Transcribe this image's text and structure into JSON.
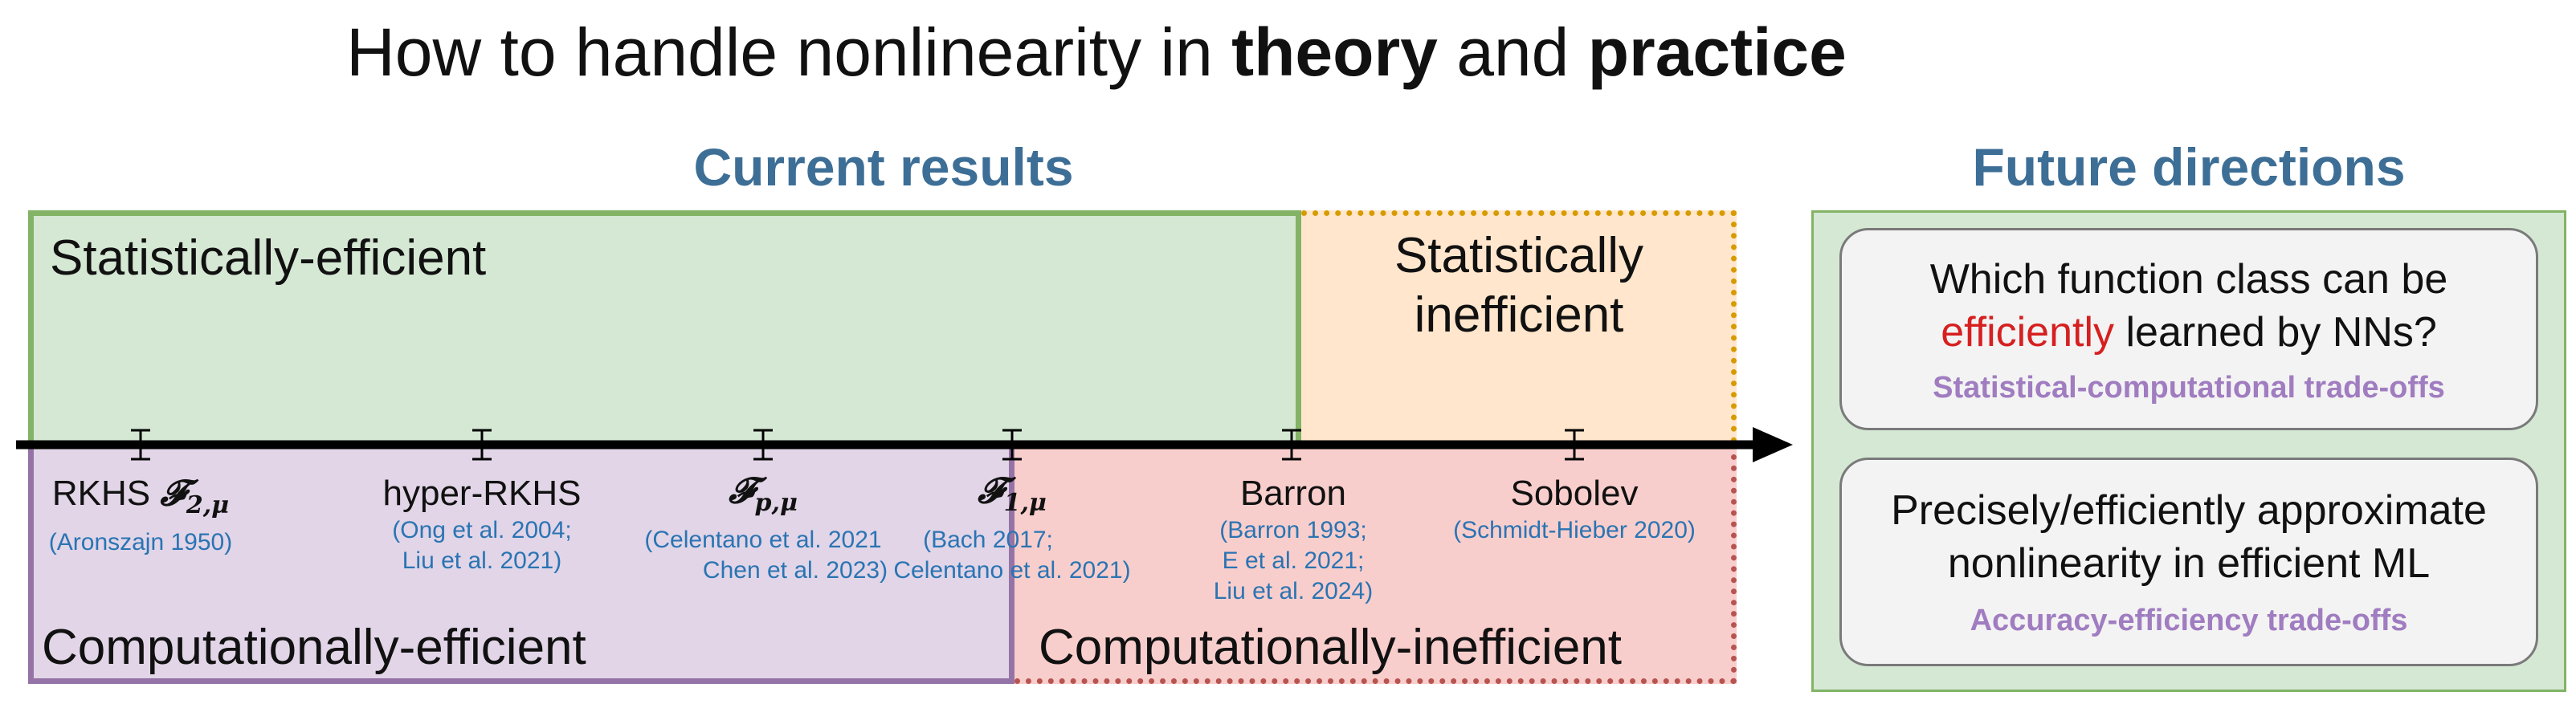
{
  "title": {
    "prefix": "How to handle nonlinearity in ",
    "b1": "theory",
    "mid": " and ",
    "b2": "practice"
  },
  "current": {
    "heading": "Current results",
    "stat_eff": "Statistically-efficient",
    "stat_ineff_1": "Statistically",
    "stat_ineff_2": "inefficient",
    "comp_eff": "Computationally-efficient",
    "comp_ineff": "Computationally-inefficient"
  },
  "ticks": [
    {
      "label": "RKHS",
      "math_base": "𝓕",
      "math_sub": "2,μ",
      "cites": [
        "(Aronszajn 1950)"
      ]
    },
    {
      "label": "hyper-RKHS",
      "cites": [
        "(Ong et al. 2004;",
        "Liu et al. 2021)"
      ]
    },
    {
      "math_base": "𝓕",
      "math_sub": "p,μ",
      "cites": [
        "(Celentano et al. 2021",
        "Chen et al. 2023)"
      ]
    },
    {
      "math_base": "𝓕",
      "math_sub": "1,μ",
      "cites": [
        "(Bach 2017;",
        "Celentano et al. 2021)"
      ]
    },
    {
      "label": "Barron",
      "cites": [
        "(Barron 1993;",
        "E et al. 2021;",
        "Liu et al. 2024)"
      ]
    },
    {
      "label": "Sobolev",
      "cites": [
        "(Schmidt-Hieber 2020)"
      ]
    }
  ],
  "future": {
    "heading": "Future directions",
    "card1": {
      "q_line1": "Which function class can be",
      "q_red": "efficiently",
      "q_rest": " learned by NNs?",
      "tag": "Statistical-computational trade-offs"
    },
    "card2": {
      "q_line1": "Precisely/efficiently approximate",
      "q_line2": "nonlinearity in efficient ML",
      "tag": "Accuracy-efficiency trade-offs"
    }
  },
  "colors": {
    "green_fill": "#d5e8d4",
    "green_border": "#82b366",
    "orange_fill": "#ffe6cc",
    "orange_border": "#d79b00",
    "purple_fill": "#e1d5e7",
    "purple_border": "#9673a6",
    "red_fill": "#f8cecc",
    "red_border": "#b85450",
    "heading_blue": "#3d6e96",
    "cite_blue": "#2a74b3",
    "tag_purple": "#a07cc0"
  }
}
